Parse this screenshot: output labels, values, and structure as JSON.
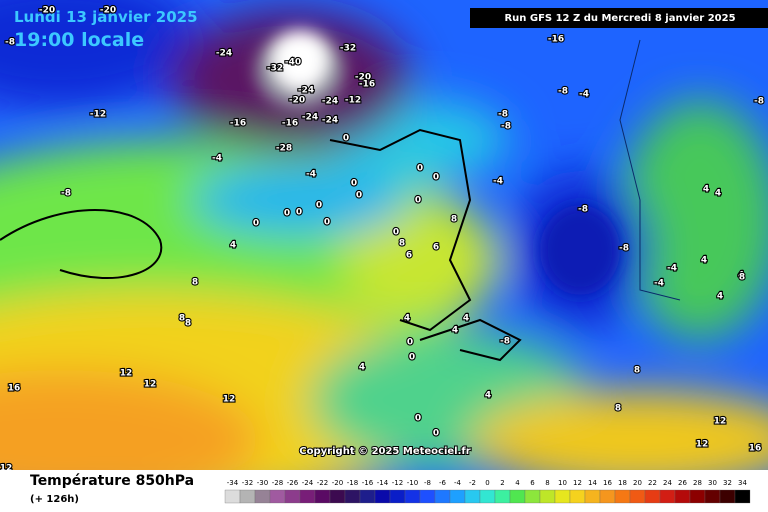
{
  "header": {
    "date": "Lundi 13 janvier 2025",
    "time": "19:00 locale",
    "run": "Run GFS 12 Z du Mercredi 8 janvier 2025"
  },
  "copyright": "Copyright © 2025 Meteociel.fr",
  "footer": {
    "title": "Température 850hPa",
    "lead": "(+ 126h)"
  },
  "contour_labels": [
    -20,
    -20,
    -8,
    -24,
    -32,
    -40,
    -32,
    -24,
    -24,
    -20,
    -12,
    -20,
    -16,
    -16,
    -16,
    -24,
    -24,
    -28,
    -12,
    -8,
    -4,
    -4,
    0,
    0,
    0,
    0,
    0,
    0,
    0,
    0,
    0,
    0,
    0,
    0,
    4,
    -16,
    -8,
    -4,
    -8,
    -8,
    -4,
    -8,
    -8,
    -8,
    8,
    6,
    8,
    6,
    4,
    4,
    0,
    0,
    4,
    4,
    0,
    0,
    4,
    8,
    8,
    12,
    12,
    12,
    8,
    8,
    8,
    16,
    12,
    12,
    16,
    4,
    4,
    4,
    4,
    4,
    8,
    -4,
    -4,
    -8,
    12
  ],
  "scale": {
    "values": [
      -34,
      -32,
      -30,
      -28,
      -26,
      -24,
      -22,
      -20,
      -18,
      -16,
      -14,
      -12,
      -10,
      -8,
      -6,
      -4,
      -2,
      0,
      2,
      4,
      6,
      8,
      10,
      12,
      14,
      16,
      18,
      20,
      22,
      24,
      26,
      28,
      30,
      32,
      34
    ],
    "colors": [
      "#dcdcdc",
      "#b4b4b4",
      "#968296",
      "#a05aa0",
      "#8c3c8c",
      "#781e78",
      "#5a0a64",
      "#3c0a50",
      "#2d1464",
      "#1e1e8c",
      "#0a0aaa",
      "#0a1ec8",
      "#1432e6",
      "#1e50ff",
      "#1e78ff",
      "#1ea0ff",
      "#28c8f0",
      "#32e6d2",
      "#3cf0a0",
      "#50e650",
      "#8ce63c",
      "#bee628",
      "#e6e61e",
      "#f5d21e",
      "#f5b41e",
      "#f5961e",
      "#f57814",
      "#f05a14",
      "#e63c14",
      "#d21e14",
      "#b40a0a",
      "#8c0000",
      "#640000",
      "#3c0000",
      "#000000"
    ]
  }
}
